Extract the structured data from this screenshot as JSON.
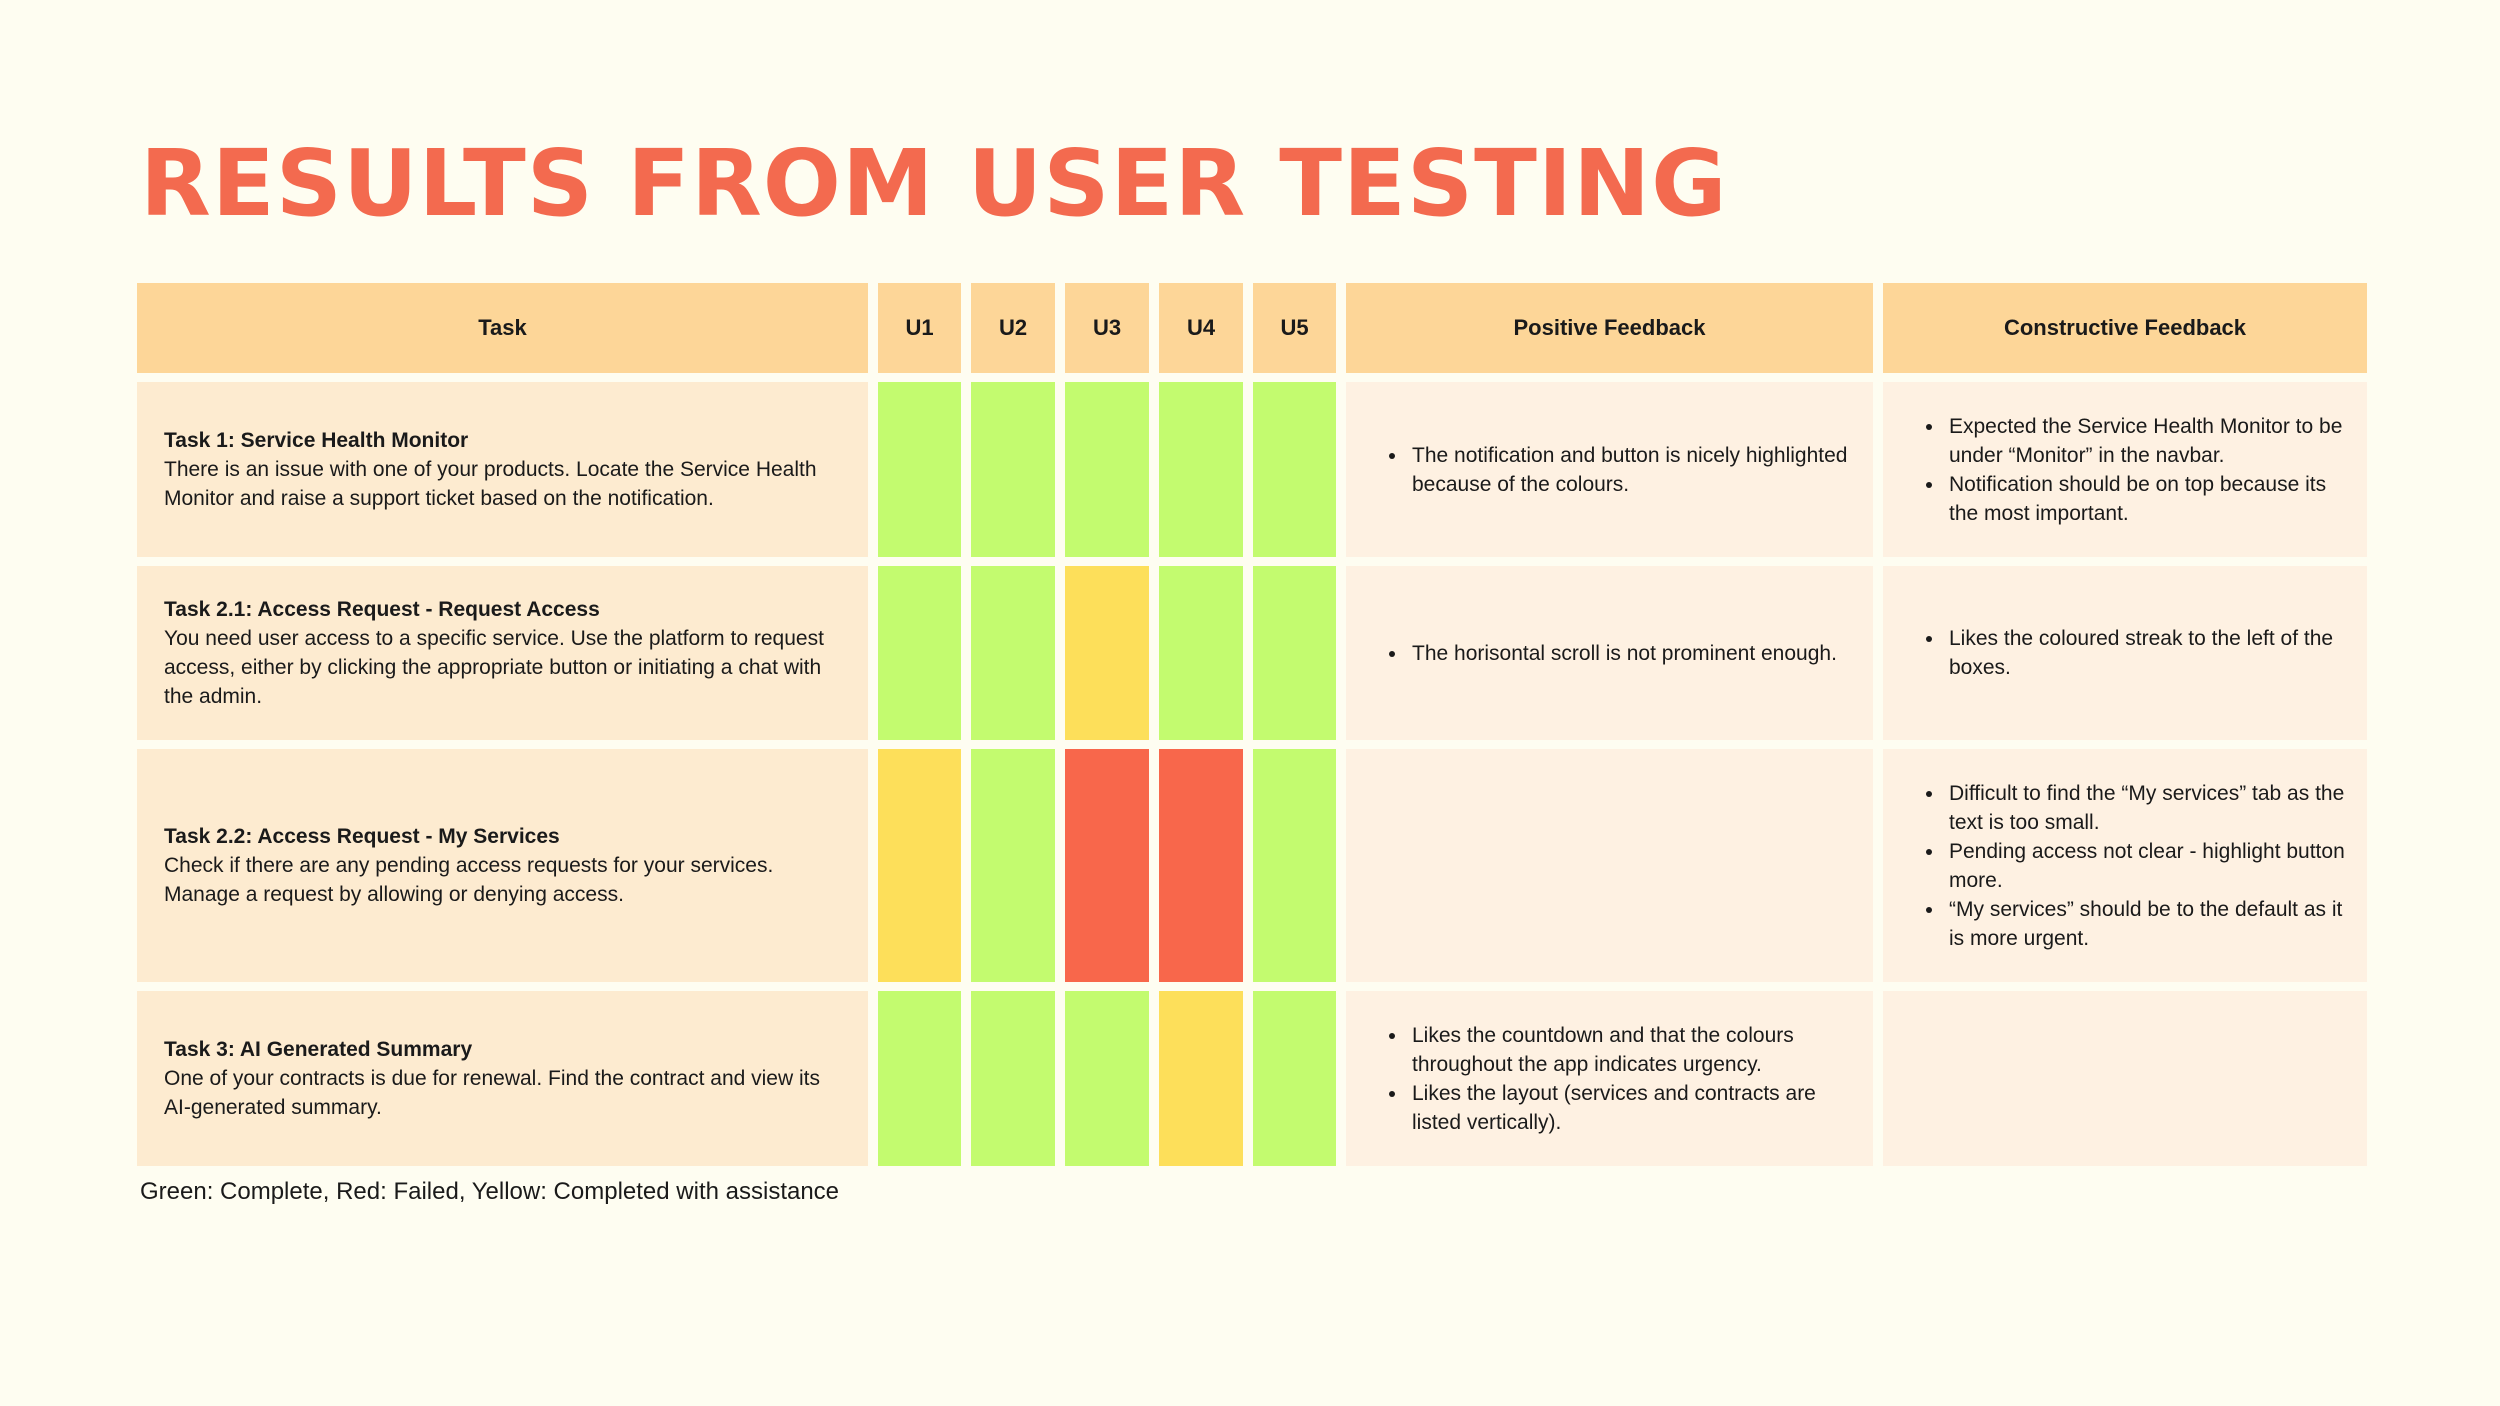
{
  "title": "RESULTS FROM USER TESTING",
  "table": {
    "headers": [
      "Task",
      "U1",
      "U2",
      "U3",
      "U4",
      "U5",
      "Positive Feedback",
      "Constructive Feedback"
    ],
    "rows": [
      {
        "task_title": "Task 1: Service Health Monitor",
        "task_desc": "There is an issue with one of your products. Locate the Service Health Monitor and raise a support ticket based on the notification.",
        "results": [
          "green",
          "green",
          "green",
          "green",
          "green"
        ],
        "positive": [
          "The notification and button is nicely highlighted because of the colours."
        ],
        "constructive": [
          "Expected the Service Health Monitor to be under “Monitor” in the navbar.",
          "Notification should be on top because its the most important."
        ]
      },
      {
        "task_title": "Task 2.1: Access Request - Request Access",
        "task_desc": "You need user access to a specific service. Use the platform to request access, either by clicking the appropriate button or initiating a chat with the admin.",
        "results": [
          "green",
          "green",
          "yellow",
          "green",
          "green"
        ],
        "positive": [
          "The horisontal scroll is not prominent enough."
        ],
        "constructive": [
          "Likes the coloured streak to the left of the boxes."
        ]
      },
      {
        "task_title": "Task 2.2: Access Request - My Services",
        "task_desc": "Check if there are any pending access requests for your services. Manage a request by allowing or denying access.",
        "results": [
          "yellow",
          "green",
          "red",
          "red",
          "green"
        ],
        "positive": [],
        "constructive": [
          "Difficult to find the “My services” tab as the text is too small.",
          "Pending access not clear - highlight button more.",
          "“My services” should be to the default as it is more urgent."
        ]
      },
      {
        "task_title": "Task 3: AI Generated Summary",
        "task_desc": "One of your contracts is due for renewal. Find the contract and view its AI-generated summary.",
        "results": [
          "green",
          "green",
          "green",
          "yellow",
          "green"
        ],
        "positive": [
          "Likes the countdown and that the colours throughout the app indicates urgency.",
          "Likes the layout (services and contracts are listed vertically)."
        ],
        "constructive": []
      }
    ]
  },
  "legend": "Green: Complete, Red: Failed, Yellow: Completed with assistance",
  "colors": {
    "title": "#f36a4f",
    "header_bg": "#fdd698",
    "task_bg": "#fdebd0",
    "feedback_bg": "#fef1e2",
    "green": "#c3fb6f",
    "yellow": "#fddf5a",
    "red": "#f8674b"
  }
}
